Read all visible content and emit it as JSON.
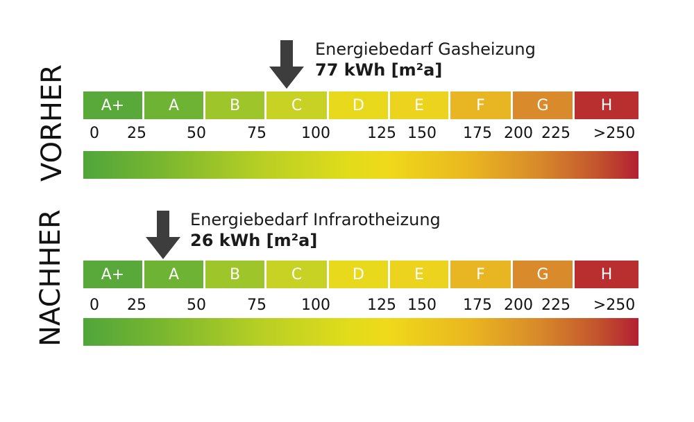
{
  "chart_data": [
    {
      "type": "bar",
      "title": "Energiebedarf Gasheizung",
      "value_label": "77 kWh [m²a]",
      "value": 77,
      "unit": "kWh [m²a]",
      "side_label": "VORHER",
      "classes": [
        {
          "label": "A+",
          "color": "#58a83a"
        },
        {
          "label": "A",
          "color": "#6fb334"
        },
        {
          "label": "B",
          "color": "#9ec52a"
        },
        {
          "label": "C",
          "color": "#c8d224"
        },
        {
          "label": "D",
          "color": "#e8d91c"
        },
        {
          "label": "E",
          "color": "#ecd31d"
        },
        {
          "label": "F",
          "color": "#e8b623"
        },
        {
          "label": "G",
          "color": "#d98a2b"
        },
        {
          "label": "H",
          "color": "#b92f30"
        }
      ],
      "ticks": [
        "0",
        "25",
        "50",
        "75",
        "100",
        "125",
        "150",
        "175",
        "200",
        "225",
        ">250"
      ]
    },
    {
      "type": "bar",
      "title": "Energiebedarf Infrarotheizung",
      "value_label": "26 kWh [m²a]",
      "value": 26,
      "unit": "kWh [m²a]",
      "side_label": "NACHHER",
      "classes": [
        {
          "label": "A+",
          "color": "#58a83a"
        },
        {
          "label": "A",
          "color": "#6fb334"
        },
        {
          "label": "B",
          "color": "#9ec52a"
        },
        {
          "label": "C",
          "color": "#c8d224"
        },
        {
          "label": "D",
          "color": "#e8d91c"
        },
        {
          "label": "E",
          "color": "#ecd31d"
        },
        {
          "label": "F",
          "color": "#e8b623"
        },
        {
          "label": "G",
          "color": "#d98a2b"
        },
        {
          "label": "H",
          "color": "#b92f30"
        }
      ],
      "ticks": [
        "0",
        "25",
        "50",
        "75",
        "100",
        "125",
        "150",
        "175",
        "200",
        "225",
        ">250"
      ]
    }
  ]
}
